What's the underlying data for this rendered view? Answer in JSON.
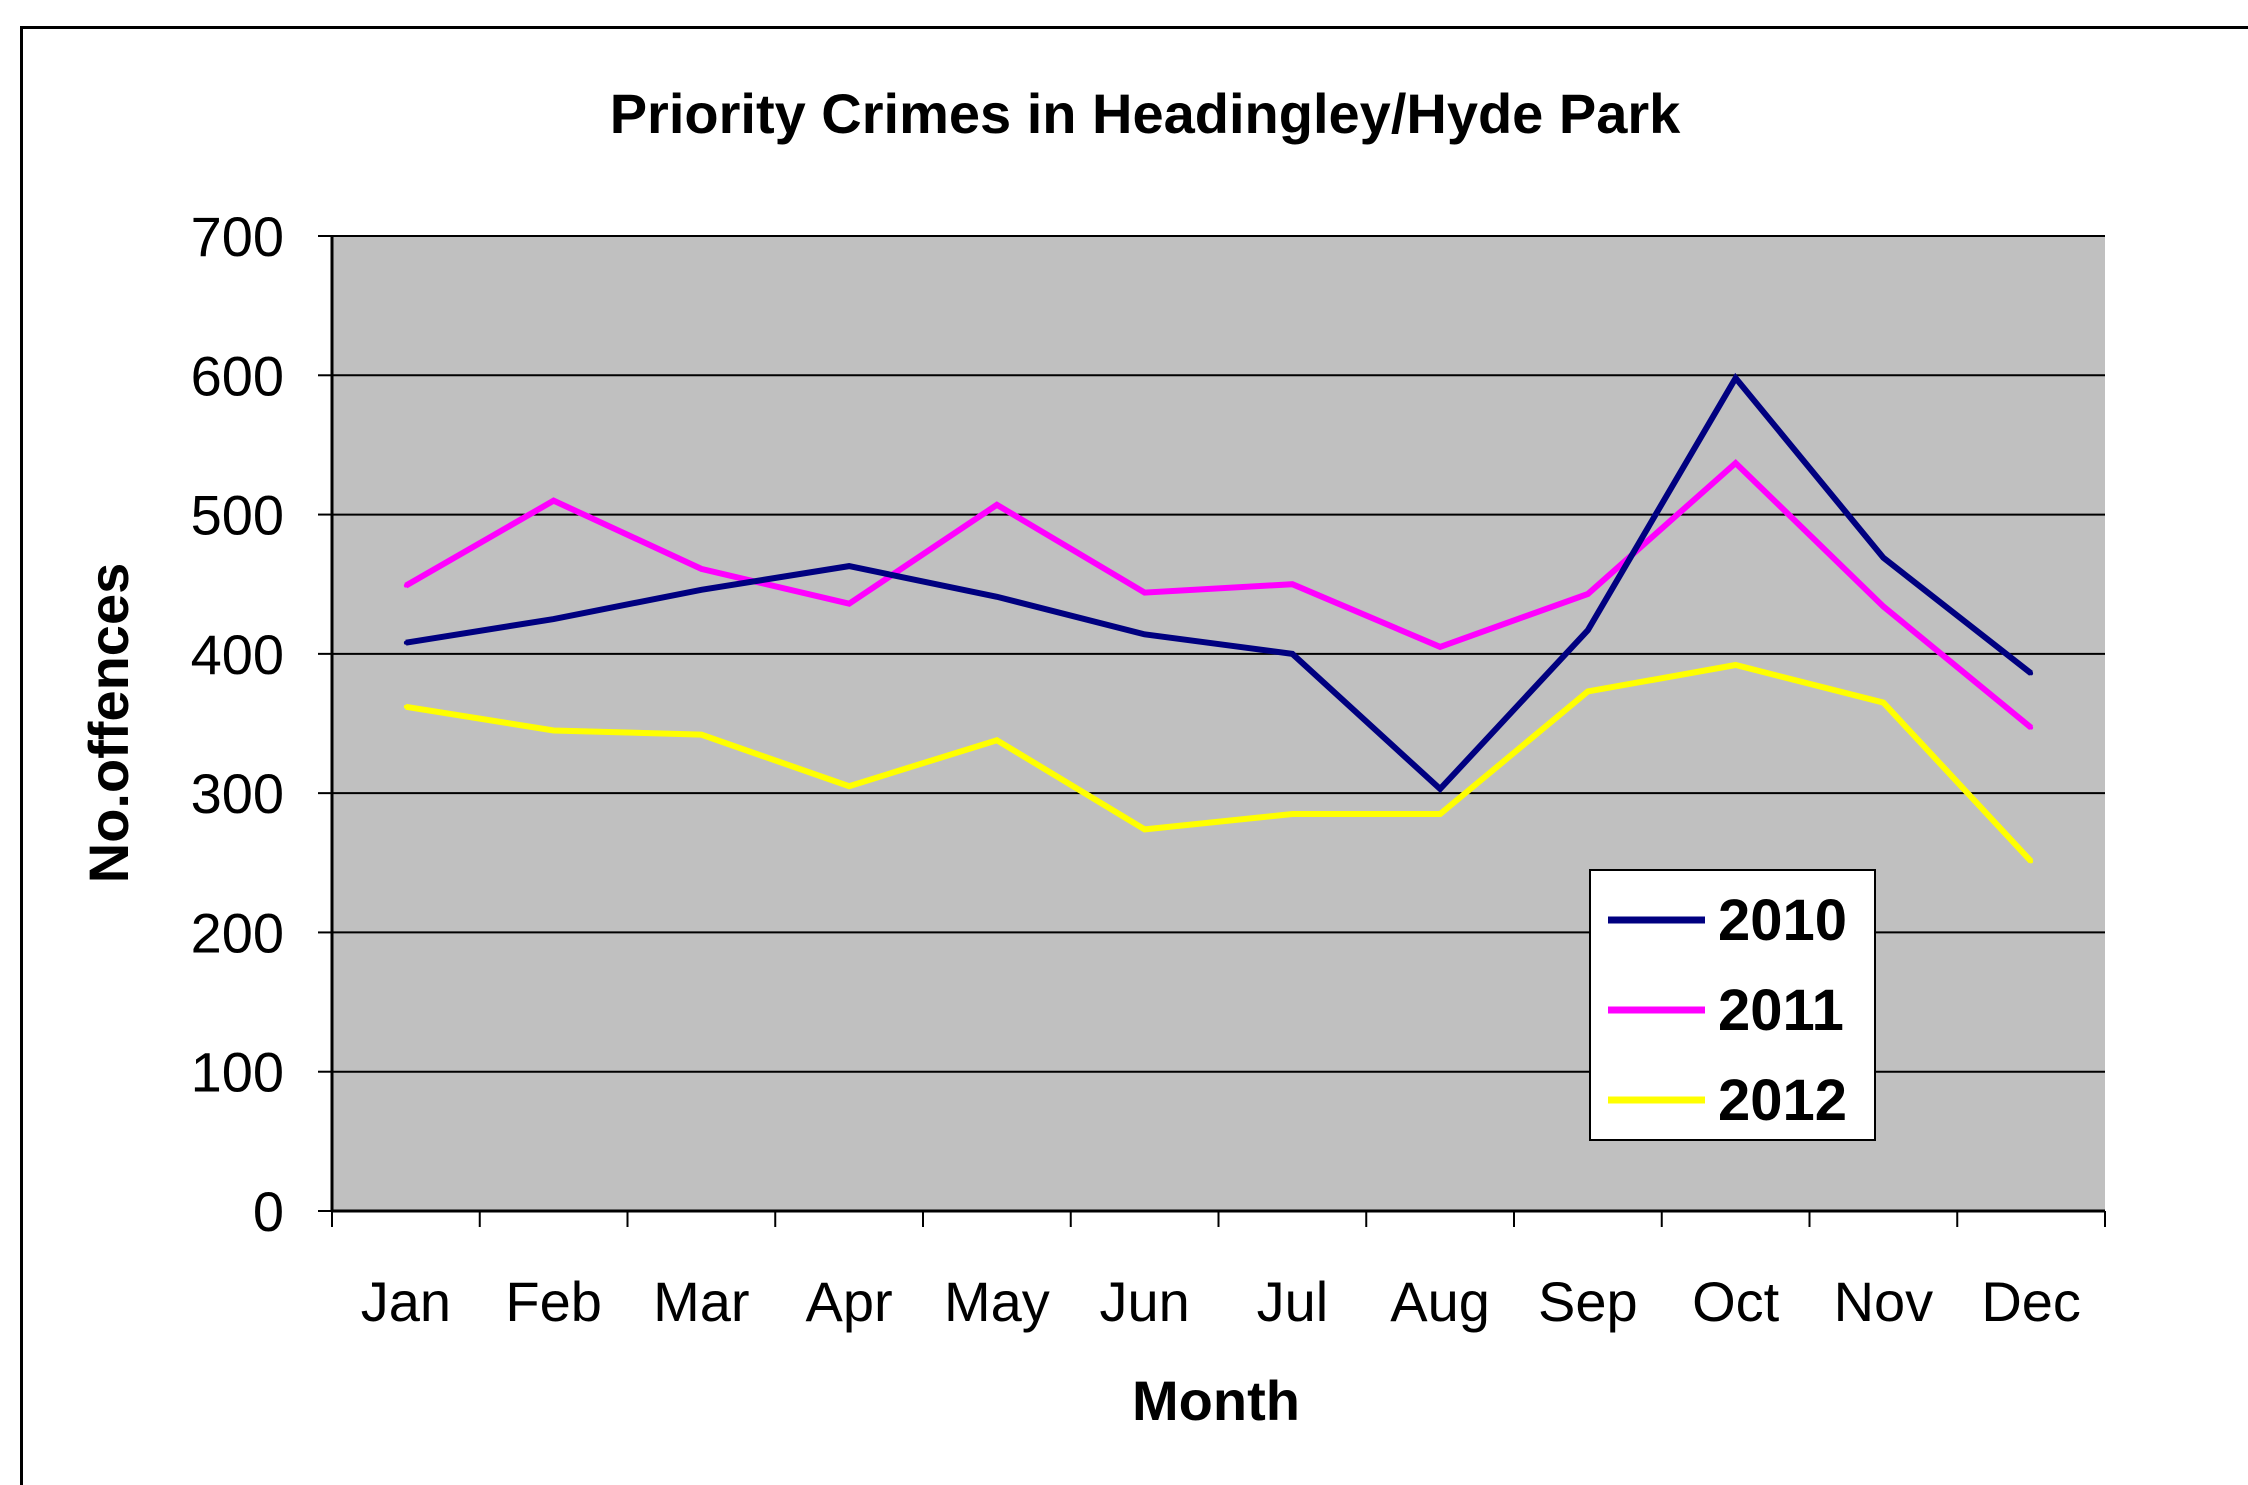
{
  "chart_data": {
    "type": "line",
    "title": "Priority Crimes in Headingley/Hyde Park",
    "xlabel": "Month",
    "ylabel": "No.offences",
    "categories": [
      "Jan",
      "Feb",
      "Mar",
      "Apr",
      "May",
      "Jun",
      "Jul",
      "Aug",
      "Sep",
      "Oct",
      "Nov",
      "Dec"
    ],
    "ylim": [
      0,
      700
    ],
    "yticks": [
      0,
      100,
      200,
      300,
      400,
      500,
      600,
      700
    ],
    "grid": true,
    "legend_position": "bottom-right",
    "plot_background": "#c0c0c0",
    "series": [
      {
        "name": "2010",
        "color": "#000080",
        "values": [
          408,
          425,
          446,
          463,
          441,
          414,
          400,
          303,
          417,
          598,
          469,
          386
        ]
      },
      {
        "name": "2011",
        "color": "#ff00ff",
        "values": [
          449,
          510,
          461,
          436,
          507,
          444,
          450,
          405,
          443,
          537,
          434,
          347
        ]
      },
      {
        "name": "2012",
        "color": "#ffff00",
        "values": [
          362,
          345,
          342,
          305,
          338,
          274,
          285,
          285,
          373,
          392,
          365,
          251
        ]
      }
    ]
  }
}
